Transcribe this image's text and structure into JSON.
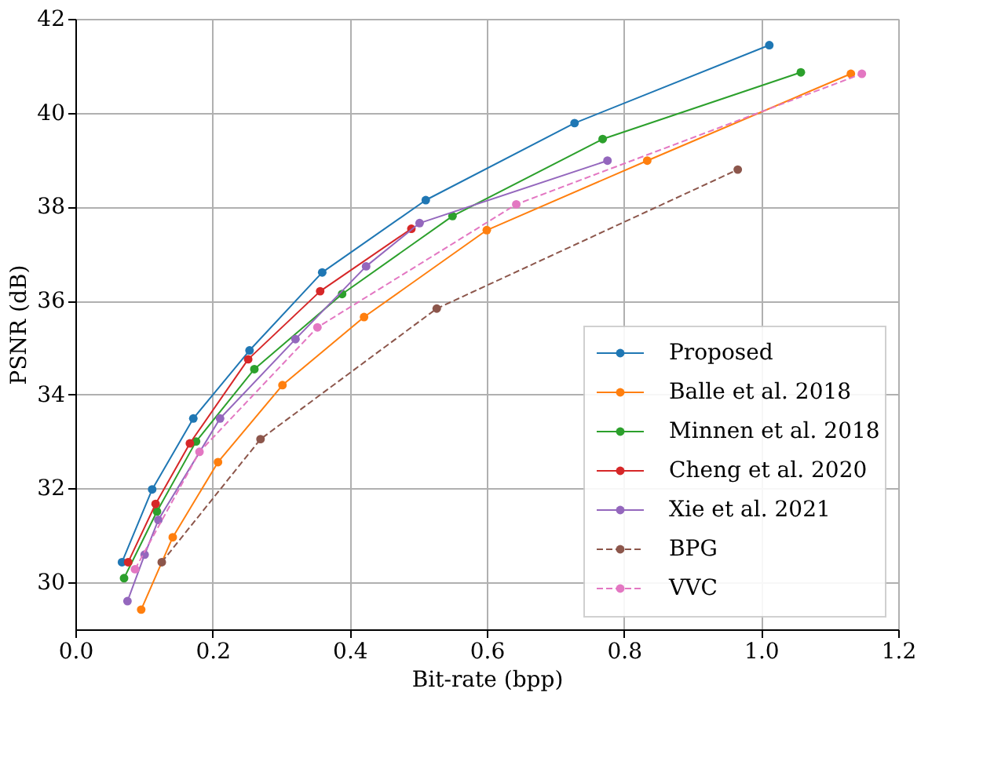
{
  "chart_data": {
    "type": "line",
    "xlabel": "Bit-rate (bpp)",
    "ylabel": "PSNR (dB)",
    "xlim": [
      0,
      1.2
    ],
    "xticks": [
      {
        "value": 0,
        "label": "0.0"
      },
      {
        "value": 0.2,
        "label": "0.2"
      },
      {
        "value": 0.4,
        "label": "0.4"
      },
      {
        "value": 0.6,
        "label": "0.6"
      },
      {
        "value": 0.8,
        "label": "0.8"
      },
      {
        "value": 1,
        "label": "1.0"
      },
      {
        "value": 1.2,
        "label": "1.2"
      }
    ],
    "ylim": [
      29,
      42
    ],
    "yticks": [
      30,
      32,
      34,
      36,
      38,
      40,
      42
    ],
    "grid": true,
    "legend": "bottom right",
    "marker": "circle",
    "series": [
      {
        "name": "Proposed",
        "color": "#1f77b4",
        "line_style": "solid",
        "x": [
          0.068,
          0.112,
          0.172,
          0.254,
          0.36,
          0.511,
          0.728,
          1.012
        ],
        "values": [
          30.43,
          31.98,
          33.49,
          34.94,
          36.6,
          38.14,
          39.78,
          41.44
        ]
      },
      {
        "name": "Balle et al. 2018",
        "color": "#ff7f0e",
        "line_style": "solid",
        "x": [
          0.096,
          0.142,
          0.208,
          0.302,
          0.421,
          0.6,
          0.834,
          1.131
        ],
        "values": [
          29.42,
          30.96,
          32.56,
          34.2,
          35.65,
          37.5,
          38.98,
          40.83
        ]
      },
      {
        "name": "Minnen et al. 2018",
        "color": "#2ca02c",
        "line_style": "solid",
        "x": [
          0.071,
          0.119,
          0.176,
          0.261,
          0.389,
          0.55,
          0.769,
          1.058
        ],
        "values": [
          30.09,
          31.51,
          33.0,
          34.54,
          36.14,
          37.8,
          39.44,
          40.86
        ]
      },
      {
        "name": "Cheng et al. 2020",
        "color": "#d62728",
        "line_style": "solid",
        "x": [
          0.077,
          0.117,
          0.167,
          0.252,
          0.357,
          0.49
        ],
        "values": [
          30.43,
          31.67,
          32.96,
          34.75,
          36.2,
          37.53
        ]
      },
      {
        "name": "Xie et al. 2021",
        "color": "#9467bd",
        "line_style": "solid",
        "x": [
          0.076,
          0.101,
          0.121,
          0.211,
          0.321,
          0.424,
          0.502,
          0.776
        ],
        "values": [
          29.6,
          30.59,
          31.33,
          33.49,
          35.18,
          36.73,
          37.65,
          38.98
        ]
      },
      {
        "name": "BPG",
        "color": "#8c564b",
        "line_style": "dashed",
        "x": [
          0.126,
          0.27,
          0.527,
          0.966
        ],
        "values": [
          30.43,
          33.05,
          35.83,
          38.79
        ]
      },
      {
        "name": "VVC",
        "color": "#e377c2",
        "line_style": "dashed",
        "x": [
          0.087,
          0.181,
          0.353,
          0.643,
          1.147
        ],
        "values": [
          30.28,
          32.78,
          35.43,
          38.05,
          40.83
        ]
      }
    ]
  }
}
